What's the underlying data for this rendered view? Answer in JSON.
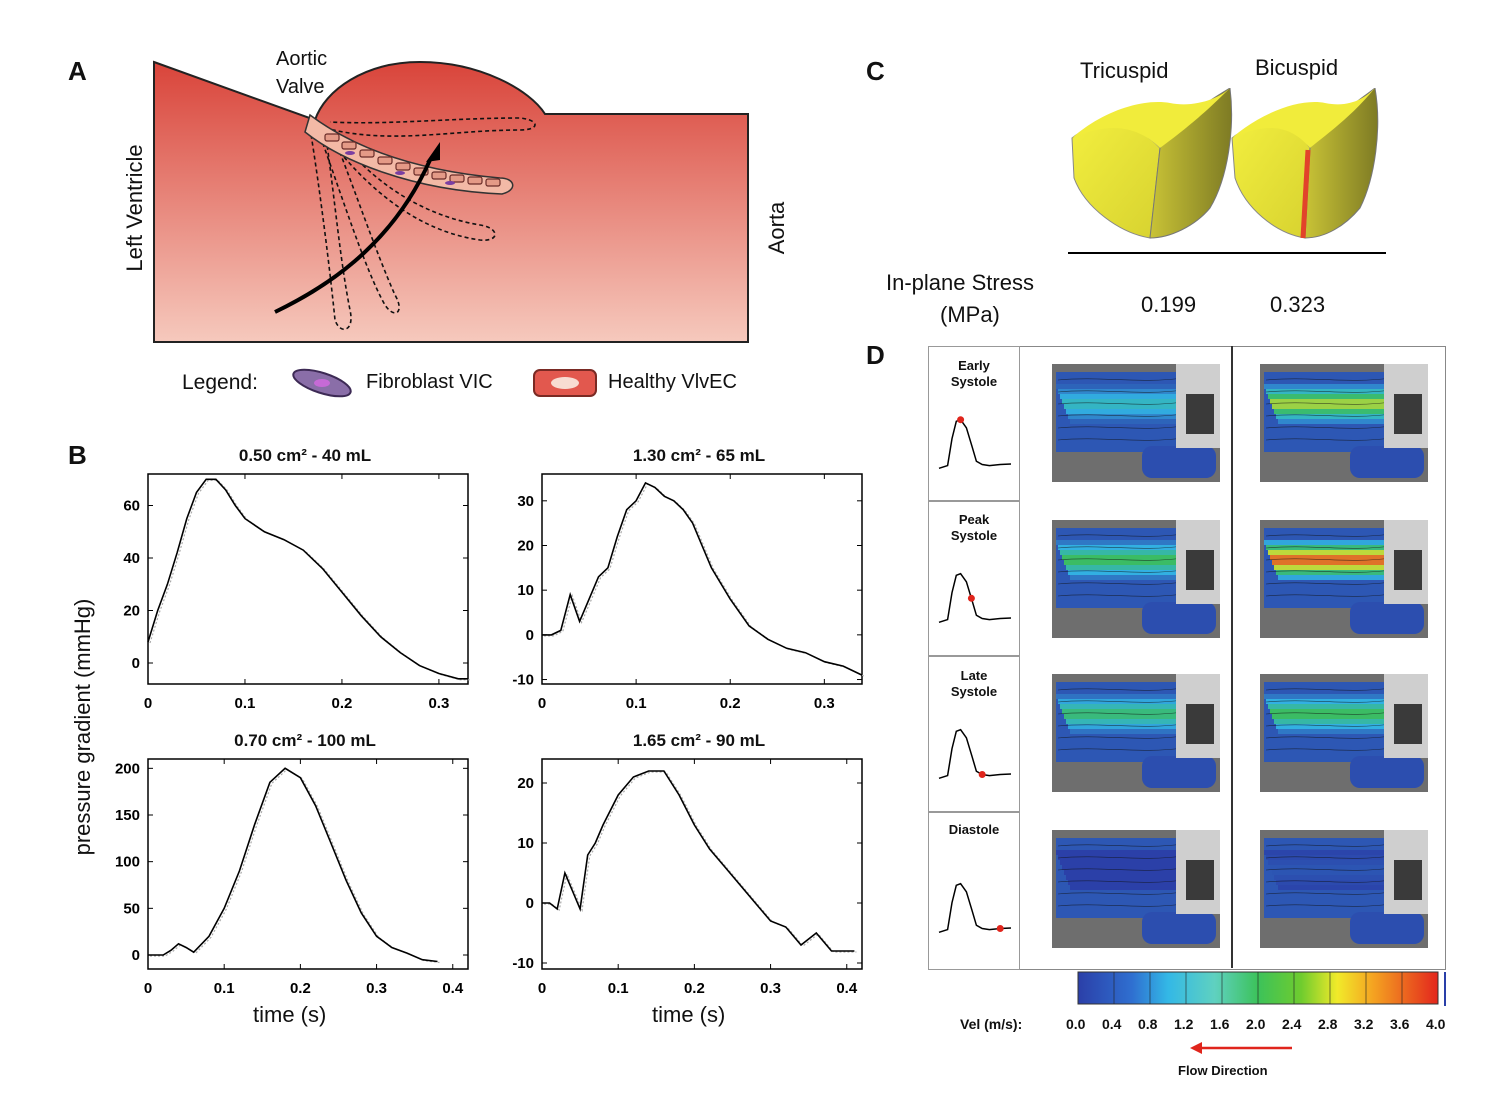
{
  "panels": {
    "a": "A",
    "b": "B",
    "c": "C",
    "d": "D"
  },
  "panel_a": {
    "aortic_valve": [
      "Aortic",
      "Valve"
    ],
    "left_ventricle": "Left Ventricle",
    "aorta": "Aorta",
    "legend_label": "Legend:",
    "legend_items": [
      "Fibroblast VIC",
      "Healthy VlvEC"
    ],
    "colors": {
      "tissue_dark": "#d9443a",
      "tissue_light": "#f6c9bd"
    }
  },
  "panel_b": {
    "ylabel": "pressure gradient (mmHg)",
    "xlabel": "time (s)"
  },
  "chart_data": [
    {
      "type": "line",
      "title": "0.50 cm² - 40 mL",
      "xlim": [
        0,
        0.33
      ],
      "ylim": [
        -8,
        72
      ],
      "xticks": [
        "0",
        "0.1",
        "0.2",
        "0.3"
      ],
      "yticks": [
        "0",
        "20",
        "40",
        "60"
      ],
      "series": [
        {
          "x": [
            0,
            0.01,
            0.02,
            0.03,
            0.04,
            0.05,
            0.06,
            0.07,
            0.08,
            0.09,
            0.1,
            0.12,
            0.14,
            0.16,
            0.18,
            0.2,
            0.22,
            0.24,
            0.26,
            0.28,
            0.3,
            0.32,
            0.33
          ],
          "y": [
            8,
            20,
            30,
            42,
            55,
            65,
            70,
            70,
            66,
            60,
            55,
            50,
            47,
            43,
            36,
            27,
            18,
            10,
            4,
            -1,
            -4,
            -6,
            -6
          ]
        }
      ]
    },
    {
      "type": "line",
      "title": "1.30 cm² - 65 mL",
      "xlim": [
        0,
        0.34
      ],
      "ylim": [
        -11,
        36
      ],
      "xticks": [
        "0",
        "0.1",
        "0.2",
        "0.3"
      ],
      "yticks": [
        "-10",
        "0",
        "10",
        "20",
        "30"
      ],
      "series": [
        {
          "x": [
            0,
            0.01,
            0.02,
            0.03,
            0.04,
            0.05,
            0.06,
            0.07,
            0.08,
            0.09,
            0.1,
            0.11,
            0.12,
            0.13,
            0.14,
            0.15,
            0.16,
            0.17,
            0.18,
            0.2,
            0.22,
            0.24,
            0.26,
            0.28,
            0.3,
            0.32,
            0.34
          ],
          "y": [
            0,
            0,
            1,
            9,
            3,
            8,
            13,
            15,
            22,
            28,
            30,
            34,
            33,
            31,
            30,
            28,
            25,
            20,
            15,
            8,
            2,
            -1,
            -3,
            -4,
            -6,
            -7,
            -9
          ]
        }
      ]
    },
    {
      "type": "line",
      "title": "0.70 cm² - 100 mL",
      "xlim": [
        0,
        0.42
      ],
      "ylim": [
        -15,
        210
      ],
      "xticks": [
        "0",
        "0.1",
        "0.2",
        "0.3",
        "0.4"
      ],
      "yticks": [
        "0",
        "50",
        "100",
        "150",
        "200"
      ],
      "series": [
        {
          "x": [
            0,
            0.02,
            0.03,
            0.04,
            0.05,
            0.06,
            0.08,
            0.1,
            0.12,
            0.14,
            0.16,
            0.18,
            0.2,
            0.22,
            0.24,
            0.26,
            0.28,
            0.3,
            0.32,
            0.34,
            0.36,
            0.38
          ],
          "y": [
            0,
            0,
            5,
            12,
            8,
            3,
            20,
            50,
            90,
            140,
            185,
            200,
            190,
            160,
            120,
            80,
            45,
            20,
            8,
            2,
            -5,
            -7
          ]
        }
      ]
    },
    {
      "type": "line",
      "title": "1.65 cm² - 90 mL",
      "xlim": [
        0,
        0.42
      ],
      "ylim": [
        -11,
        24
      ],
      "xticks": [
        "0",
        "0.1",
        "0.2",
        "0.3",
        "0.4"
      ],
      "yticks": [
        "-10",
        "0",
        "10",
        "20"
      ],
      "series": [
        {
          "x": [
            0,
            0.01,
            0.02,
            0.03,
            0.04,
            0.05,
            0.06,
            0.07,
            0.08,
            0.1,
            0.12,
            0.14,
            0.16,
            0.18,
            0.2,
            0.22,
            0.24,
            0.26,
            0.28,
            0.3,
            0.32,
            0.34,
            0.36,
            0.38,
            0.4,
            0.41
          ],
          "y": [
            0,
            0,
            -1,
            5,
            2,
            -1,
            8,
            10,
            13,
            18,
            21,
            22,
            22,
            18,
            13,
            9,
            6,
            3,
            0,
            -3,
            -4,
            -7,
            -5,
            -8,
            -8,
            -8
          ]
        }
      ]
    }
  ],
  "panel_c": {
    "labels": [
      "Tricuspid",
      "Bicuspid"
    ],
    "stress_label": [
      "In-plane Stress",
      "(MPa)"
    ],
    "stress_values": [
      "0.199",
      "0.323"
    ],
    "colors": {
      "leaflet": "#ebe63a",
      "leaflet_dark": "#9e9b2c",
      "stress": "#e2432a"
    }
  },
  "panel_d": {
    "phases": [
      {
        "label": [
          "Early",
          "Systole"
        ],
        "marker": 0.3
      },
      {
        "label": [
          "Peak",
          "Systole"
        ],
        "marker": 0.45
      },
      {
        "label": [
          "Late",
          "Systole"
        ],
        "marker": 0.6
      },
      {
        "label": [
          "Diastole"
        ],
        "marker": 0.85
      }
    ],
    "colorbar_label": "Vel (m/s):",
    "colorbar_ticks": [
      "0.0",
      "0.4",
      "0.8",
      "1.2",
      "1.6",
      "2.0",
      "2.4",
      "2.8",
      "3.2",
      "3.6",
      "4.0"
    ],
    "flow_direction": "Flow Direction",
    "colors": {
      "low": "#2b4fb3",
      "mid": "#34c66b",
      "high": "#e8291d"
    }
  }
}
